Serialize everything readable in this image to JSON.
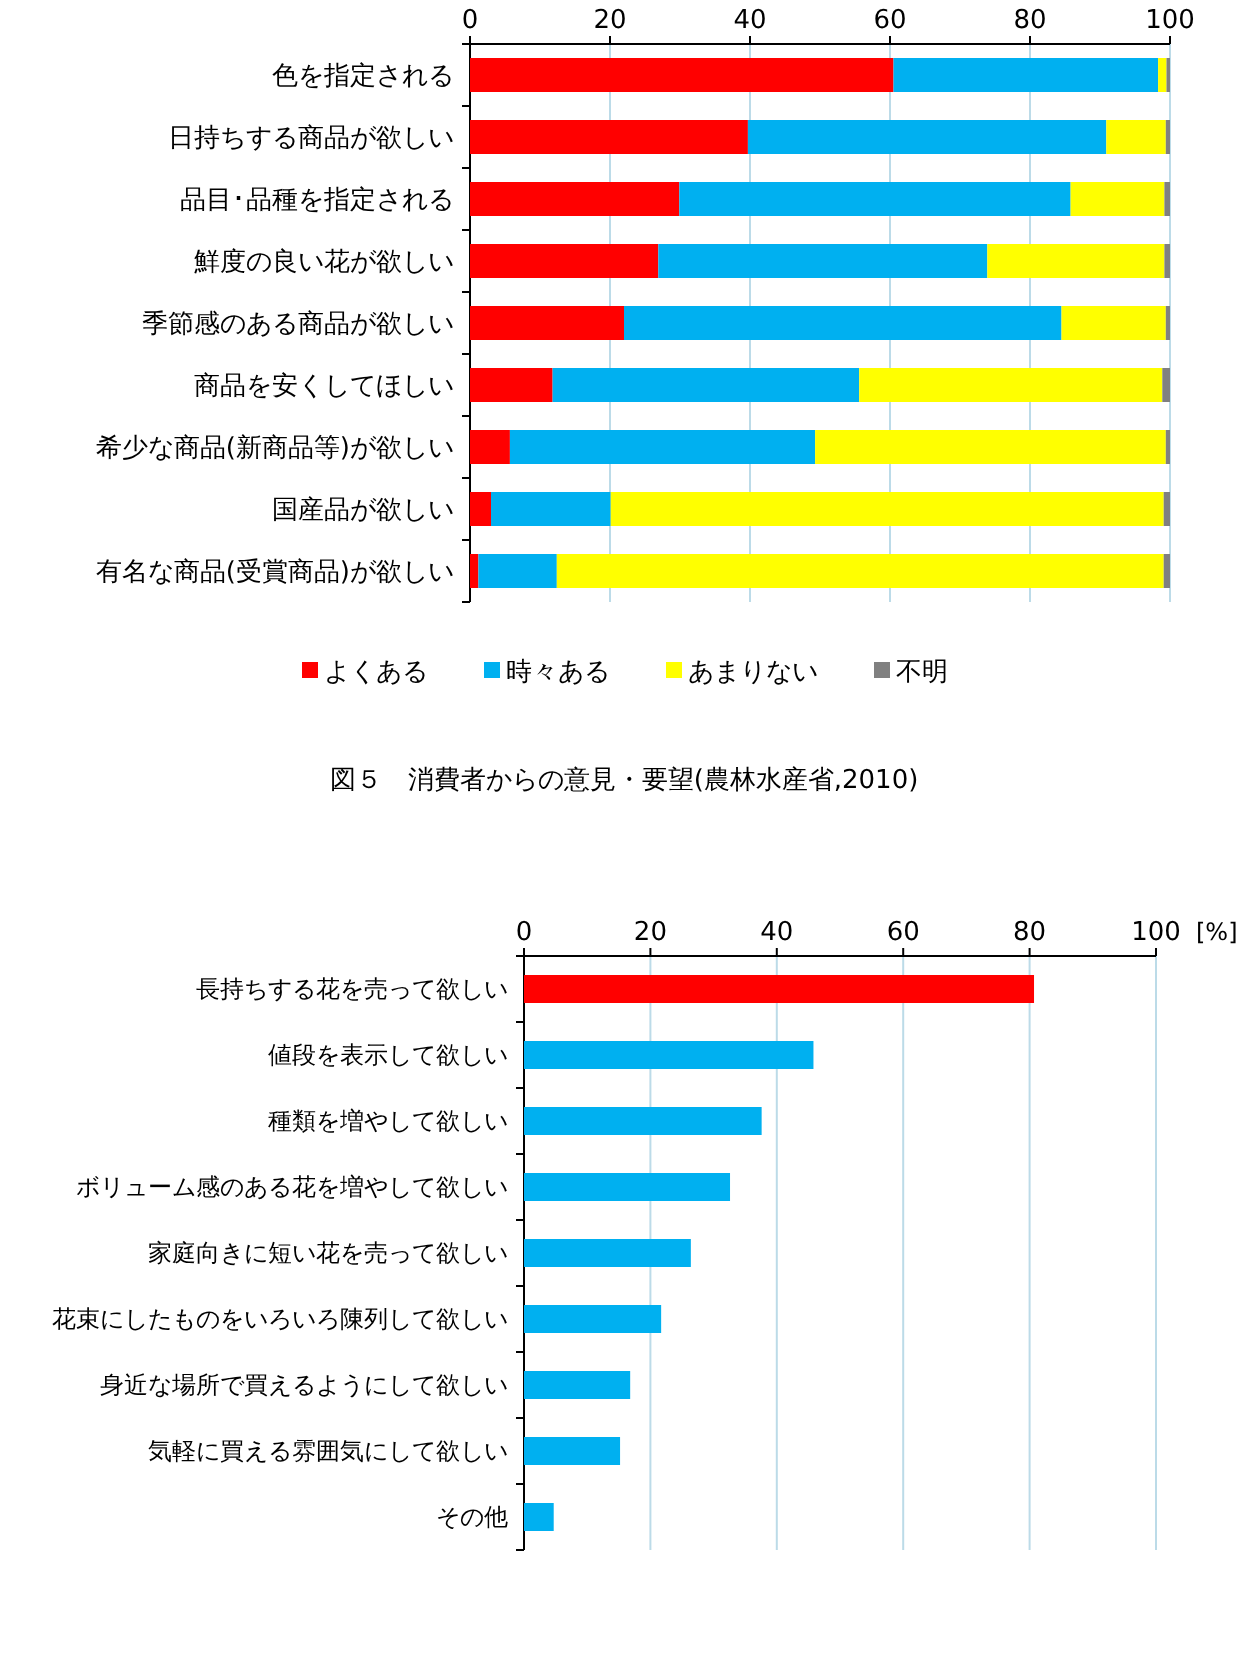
{
  "chart_data": [
    {
      "type": "bar",
      "orientation": "horizontal",
      "stacked": true,
      "categories": [
        "色を指定される",
        "日持ちする商品が欲しい",
        "品目･品種を指定される",
        "鮮度の良い花が欲しい",
        "季節感のある商品が欲しい",
        "商品を安くしてほしい",
        "希少な商品(新商品等)が欲しい",
        "国産品が欲しい",
        "有名な商品(受賞商品)が欲しい"
      ],
      "series": [
        {
          "name": "よくある",
          "color": "#ff0000",
          "values": [
            60.5,
            39.7,
            29.9,
            26.9,
            22.0,
            11.8,
            5.7,
            3.0,
            1.2
          ]
        },
        {
          "name": "時々ある",
          "color": "#00b0f0",
          "values": [
            37.8,
            51.2,
            55.9,
            47.0,
            62.5,
            43.8,
            43.6,
            17.1,
            11.2
          ]
        },
        {
          "name": "あまりない",
          "color": "#ffff00",
          "values": [
            1.2,
            8.5,
            13.4,
            25.3,
            14.9,
            43.3,
            50.1,
            79.0,
            86.7
          ]
        },
        {
          "name": "不明",
          "color": "#808080",
          "values": [
            0.5,
            0.6,
            0.8,
            0.8,
            0.6,
            1.1,
            0.6,
            0.9,
            0.9
          ]
        }
      ],
      "xlim": [
        0,
        100
      ],
      "xticks": [
        0,
        20,
        40,
        60,
        80,
        100
      ],
      "grid": "x",
      "legend": "bottom",
      "annotations": [
        "図５　消費者からの意見・要望(農林水産省,2010)"
      ]
    },
    {
      "type": "bar",
      "orientation": "horizontal",
      "categories": [
        "長持ちする花を売って欲しい",
        "値段を表示して欲しい",
        "種類を増やして欲しい",
        "ボリューム感のある花を増やして欲しい",
        "家庭向きに短い花を売って欲しい",
        "花束にしたものをいろいろ陳列して欲しい",
        "身近な場所で買えるようにして欲しい",
        "気軽に買える雰囲気にして欲しい",
        "その他"
      ],
      "values": [
        80.7,
        45.8,
        37.6,
        32.6,
        26.4,
        21.7,
        16.8,
        15.2,
        4.7
      ],
      "colors": [
        "#ff0000",
        "#00b0f0",
        "#00b0f0",
        "#00b0f0",
        "#00b0f0",
        "#00b0f0",
        "#00b0f0",
        "#00b0f0",
        "#00b0f0"
      ],
      "xlim": [
        0,
        100
      ],
      "xticks": [
        0,
        20,
        40,
        60,
        80,
        100
      ],
      "xlabel": "[%]",
      "grid": "x"
    }
  ]
}
